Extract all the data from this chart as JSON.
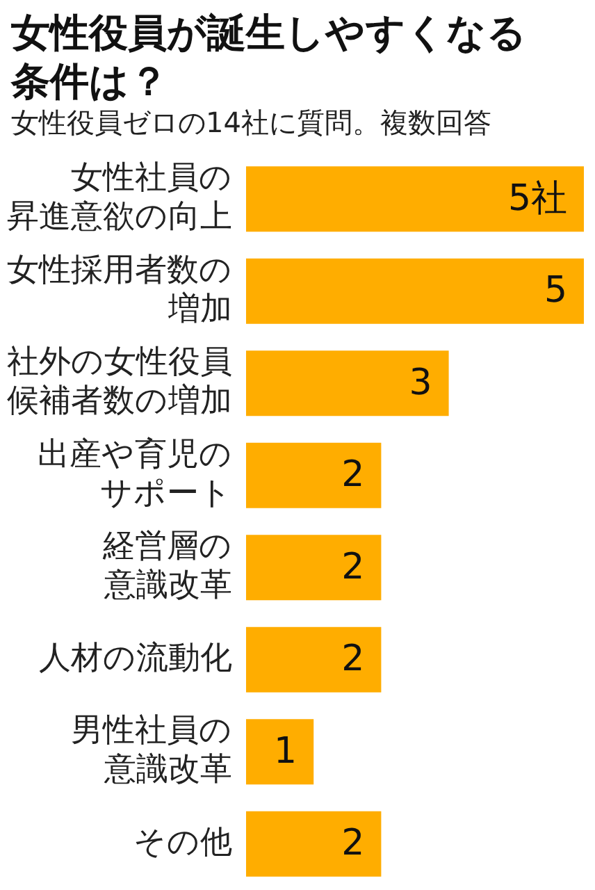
{
  "chart_data": {
    "type": "bar",
    "orientation": "horizontal",
    "title": "女性役員が誕生しやすくなる条件は？",
    "subtitle": "女性役員ゼロの14社に質問。複数回答",
    "categories": [
      "女性社員の昇進意欲の向上",
      "女性採用者数の増加",
      "社外の女性役員候補者数の増加",
      "出産や育児のサポート",
      "経営層の意識改革",
      "人材の流動化",
      "男性社員の意識改革",
      "その他"
    ],
    "values": [
      5,
      5,
      3,
      2,
      2,
      2,
      1,
      2
    ],
    "value_labels": [
      "5社",
      "5",
      "3",
      "2",
      "2",
      "2",
      "1",
      "2"
    ],
    "color": "#ffad00",
    "xlim": [
      0,
      5
    ],
    "tick_labels": "y"
  }
}
